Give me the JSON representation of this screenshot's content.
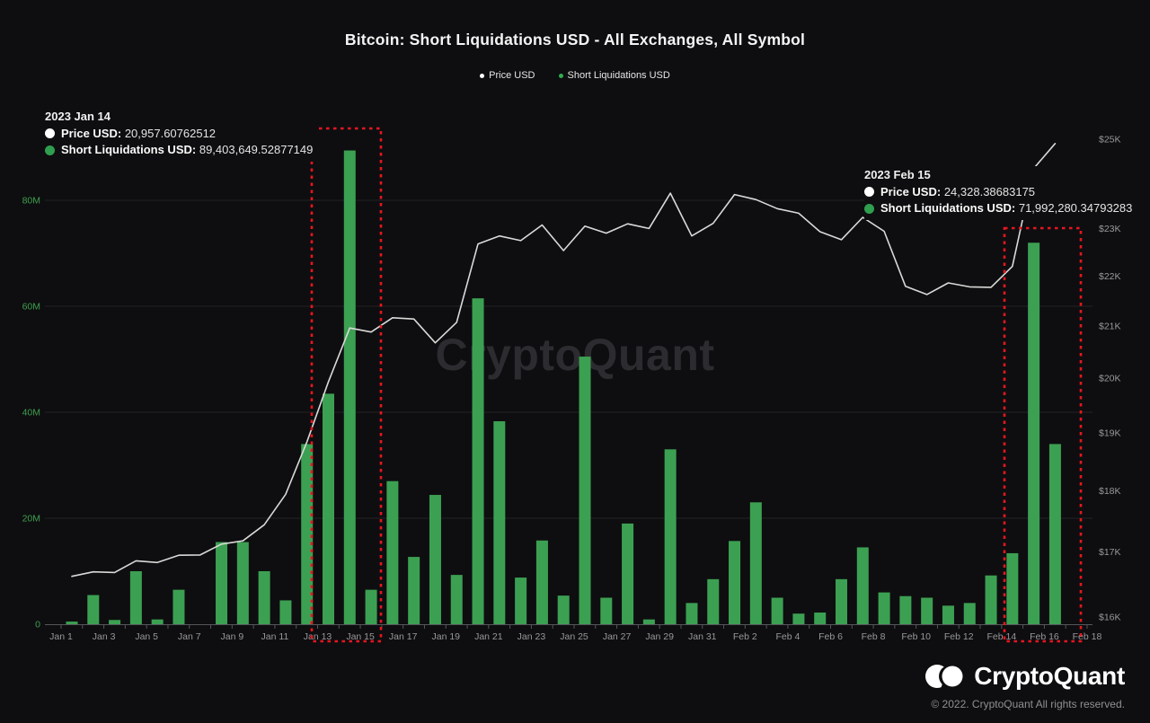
{
  "title": "Bitcoin: Short Liquidations USD - All Exchanges, All Symbol",
  "legend": {
    "price_label": "Price USD",
    "liq_label": "Short Liquidations USD"
  },
  "tooltips": [
    {
      "date": "2023 Jan 14",
      "price_label": "Price USD:",
      "price_value": "20,957.60762512",
      "liq_label": "Short Liquidations USD:",
      "liq_value": "89,403,649.52877149"
    },
    {
      "date": "2023 Feb 15",
      "price_label": "Price USD:",
      "price_value": "24,328.38683175",
      "liq_label": "Short Liquidations USD:",
      "liq_value": "71,992,280.34793283"
    }
  ],
  "watermark": "CryptoQuant",
  "footer": {
    "brand": "CryptoQuant",
    "copyright": "© 2022. CryptoQuant All rights reserved."
  },
  "colors": {
    "background": "#0e0e10",
    "bar_green": "#3ca052",
    "axis_green": "#3f9f4e",
    "price_line": "#d9d9d9",
    "grid": "#232325",
    "axis_line": "#55565a",
    "tick_label": "#98989c",
    "highlight_red": "#e91520",
    "legend_dot_white": "#ffffff",
    "legend_dot_green": "#2fae52",
    "tooltip_dot_green": "#2f9e4f"
  },
  "chart_data": {
    "type": "bar+line combo",
    "title": "Bitcoin: Short Liquidations USD - All Exchanges, All Symbol",
    "x": [
      "Jan 1",
      "Jan 2",
      "Jan 3",
      "Jan 4",
      "Jan 5",
      "Jan 6",
      "Jan 7",
      "Jan 8",
      "Jan 9",
      "Jan 10",
      "Jan 11",
      "Jan 12",
      "Jan 13",
      "Jan 14",
      "Jan 15",
      "Jan 16",
      "Jan 17",
      "Jan 18",
      "Jan 19",
      "Jan 20",
      "Jan 21",
      "Jan 22",
      "Jan 23",
      "Jan 24",
      "Jan 25",
      "Jan 26",
      "Jan 27",
      "Jan 28",
      "Jan 29",
      "Jan 30",
      "Jan 31",
      "Feb 1",
      "Feb 2",
      "Feb 3",
      "Feb 4",
      "Feb 5",
      "Feb 6",
      "Feb 7",
      "Feb 8",
      "Feb 9",
      "Feb 10",
      "Feb 11",
      "Feb 12",
      "Feb 13",
      "Feb 14",
      "Feb 15",
      "Feb 16",
      "Feb 17",
      "Feb 18"
    ],
    "x_tick_labels_every": 2,
    "series": [
      {
        "name": "Short Liquidations USD",
        "type": "bar",
        "axis": "left",
        "unit": "millions USD",
        "values": [
          0.5,
          5.5,
          0.8,
          10,
          0.9,
          6.5,
          0,
          15.5,
          15.5,
          10,
          4.5,
          34,
          43.5,
          89.4,
          6.5,
          27,
          12.7,
          24.4,
          9.3,
          61.5,
          38.3,
          8.8,
          15.8,
          5.4,
          50.5,
          5,
          19,
          0.9,
          33,
          4,
          8.5,
          15.7,
          23,
          5,
          2,
          2.2,
          8.5,
          14.5,
          6,
          5.3,
          5,
          3.5,
          4,
          9.2,
          13.4,
          71.99,
          34,
          null,
          null
        ]
      },
      {
        "name": "Price USD",
        "type": "line",
        "axis": "right",
        "unit": "USD",
        "values": [
          16620,
          16690,
          16680,
          16863,
          16836,
          16951,
          16955,
          17128,
          17180,
          17440,
          17943,
          18846,
          19930,
          20957.6,
          20880,
          21160,
          21135,
          20670,
          21070,
          22670,
          22840,
          22740,
          23075,
          22530,
          23050,
          22900,
          23100,
          23000,
          23770,
          22840,
          23110,
          23740,
          23630,
          23430,
          23330,
          22930,
          22760,
          23240,
          22940,
          21790,
          21625,
          21860,
          21780,
          21770,
          22200,
          24328.39,
          24900,
          null,
          null
        ]
      }
    ],
    "left_axis": {
      "tick_labels": [
        "0",
        "20M",
        "40M",
        "60M",
        "80M"
      ],
      "tick_values": [
        0,
        20,
        40,
        60,
        80
      ],
      "range": [
        0,
        95
      ]
    },
    "right_axis": {
      "tick_labels": [
        "$16K",
        "$17K",
        "$18K",
        "$19K",
        "$20K",
        "$21K",
        "$22K",
        "$23K",
        "$24K",
        "$25K"
      ],
      "tick_values": [
        16000,
        17000,
        18000,
        19000,
        20000,
        21000,
        22000,
        23000,
        24000,
        25000
      ],
      "scale": "log",
      "range": [
        16000,
        25000
      ]
    },
    "grid": "horizontal only",
    "legend_position": "top center",
    "highlights": [
      {
        "from": "Jan 13",
        "to": "Jan 15",
        "style": "red dashed box"
      },
      {
        "from": "Feb 14",
        "to": "Feb 16",
        "style": "red dashed box"
      }
    ]
  }
}
